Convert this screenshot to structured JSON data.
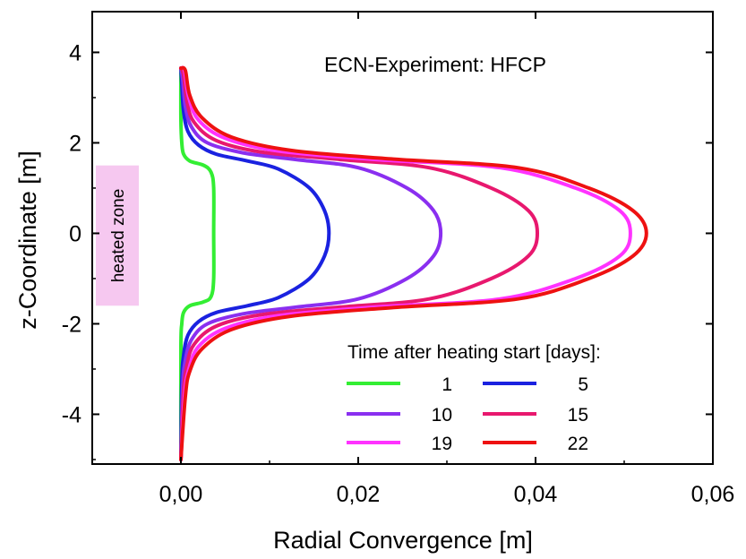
{
  "chart_data": {
    "type": "line",
    "annotation": "ECN-Experiment: HFCP",
    "xlabel": "Radial Convergence  [m]",
    "ylabel": "z-Coordinate [m]",
    "xlim": [
      -0.01,
      0.06
    ],
    "ylim": [
      -5.1,
      4.9
    ],
    "x_ticks": [
      0.0,
      0.02,
      0.04,
      0.06
    ],
    "x_tick_labels": [
      "0,00",
      "0,02",
      "0,04",
      "0,06"
    ],
    "y_ticks": [
      -4,
      -2,
      0,
      2,
      4
    ],
    "y_tick_labels": [
      "-4",
      "-2",
      "0",
      "2",
      "4"
    ],
    "grid": false,
    "heated_zone": {
      "label": "heated zone",
      "z_range": [
        -1.6,
        1.5
      ],
      "color": "#f6c8f0"
    },
    "legend": {
      "title": "Time after heating start [days]:",
      "placement": "bottom-right",
      "columns": 2
    },
    "series": [
      {
        "name": "1",
        "color": "#33ee33",
        "points": [
          [
            0.0,
            -5.0
          ],
          [
            0.0,
            -2.5
          ],
          [
            0.0001,
            -2.0
          ],
          [
            0.0003,
            -1.75
          ],
          [
            0.001,
            -1.6
          ],
          [
            0.0025,
            -1.52
          ],
          [
            0.0034,
            -1.4
          ],
          [
            0.0037,
            -1.0
          ],
          [
            0.0037,
            0.0
          ],
          [
            0.0037,
            1.0
          ],
          [
            0.0034,
            1.35
          ],
          [
            0.0026,
            1.5
          ],
          [
            0.001,
            1.6
          ],
          [
            0.0003,
            1.75
          ],
          [
            0.0001,
            2.0
          ],
          [
            0.0,
            2.5
          ],
          [
            0.0,
            3.65
          ]
        ]
      },
      {
        "name": "5",
        "color": "#1a22e0",
        "points": [
          [
            0.0,
            -5.0
          ],
          [
            0.0001,
            -3.3
          ],
          [
            0.0003,
            -2.7
          ],
          [
            0.0008,
            -2.25
          ],
          [
            0.002,
            -1.95
          ],
          [
            0.004,
            -1.75
          ],
          [
            0.0075,
            -1.6
          ],
          [
            0.011,
            -1.42
          ],
          [
            0.0145,
            -1.0
          ],
          [
            0.0162,
            -0.5
          ],
          [
            0.0167,
            0.0
          ],
          [
            0.0162,
            0.5
          ],
          [
            0.0145,
            1.0
          ],
          [
            0.011,
            1.42
          ],
          [
            0.0075,
            1.6
          ],
          [
            0.004,
            1.75
          ],
          [
            0.002,
            1.95
          ],
          [
            0.0008,
            2.25
          ],
          [
            0.0003,
            2.7
          ],
          [
            0.0001,
            3.3
          ],
          [
            0.0,
            3.65
          ]
        ]
      },
      {
        "name": "10",
        "color": "#8a2ff0",
        "points": [
          [
            0.0,
            -5.0
          ],
          [
            0.0002,
            -3.4
          ],
          [
            0.0005,
            -2.8
          ],
          [
            0.0012,
            -2.35
          ],
          [
            0.003,
            -2.0
          ],
          [
            0.007,
            -1.78
          ],
          [
            0.013,
            -1.63
          ],
          [
            0.02,
            -1.45
          ],
          [
            0.0255,
            -1.0
          ],
          [
            0.0285,
            -0.5
          ],
          [
            0.0293,
            0.0
          ],
          [
            0.0285,
            0.5
          ],
          [
            0.0255,
            1.0
          ],
          [
            0.02,
            1.45
          ],
          [
            0.013,
            1.63
          ],
          [
            0.007,
            1.78
          ],
          [
            0.003,
            2.0
          ],
          [
            0.0012,
            2.35
          ],
          [
            0.0005,
            2.8
          ],
          [
            0.0002,
            3.4
          ],
          [
            0.0,
            3.65
          ]
        ]
      },
      {
        "name": "15",
        "color": "#e8186e",
        "points": [
          [
            0.0,
            -5.0
          ],
          [
            0.0003,
            -3.5
          ],
          [
            0.0007,
            -2.9
          ],
          [
            0.0015,
            -2.45
          ],
          [
            0.004,
            -2.05
          ],
          [
            0.009,
            -1.8
          ],
          [
            0.018,
            -1.63
          ],
          [
            0.028,
            -1.45
          ],
          [
            0.035,
            -1.0
          ],
          [
            0.0392,
            -0.5
          ],
          [
            0.0402,
            0.0
          ],
          [
            0.0392,
            0.5
          ],
          [
            0.035,
            1.0
          ],
          [
            0.028,
            1.45
          ],
          [
            0.018,
            1.63
          ],
          [
            0.009,
            1.8
          ],
          [
            0.004,
            2.05
          ],
          [
            0.0015,
            2.45
          ],
          [
            0.0007,
            2.9
          ],
          [
            0.0003,
            3.5
          ],
          [
            0.0,
            3.65
          ]
        ]
      },
      {
        "name": "19",
        "color": "#ff33ff",
        "points": [
          [
            0.0,
            -5.0
          ],
          [
            0.0004,
            -3.6
          ],
          [
            0.0009,
            -3.0
          ],
          [
            0.002,
            -2.5
          ],
          [
            0.005,
            -2.1
          ],
          [
            0.011,
            -1.82
          ],
          [
            0.022,
            -1.63
          ],
          [
            0.036,
            -1.45
          ],
          [
            0.0445,
            -1.0
          ],
          [
            0.0495,
            -0.5
          ],
          [
            0.0507,
            0.0
          ],
          [
            0.0495,
            0.5
          ],
          [
            0.0445,
            1.0
          ],
          [
            0.036,
            1.45
          ],
          [
            0.022,
            1.63
          ],
          [
            0.011,
            1.82
          ],
          [
            0.005,
            2.1
          ],
          [
            0.002,
            2.5
          ],
          [
            0.0009,
            3.0
          ],
          [
            0.0004,
            3.6
          ],
          [
            0.0,
            3.65
          ]
        ]
      },
      {
        "name": "22",
        "color": "#ee1111",
        "points": [
          [
            0.0,
            -5.0
          ],
          [
            0.0005,
            -3.6
          ],
          [
            0.001,
            -3.05
          ],
          [
            0.0024,
            -2.55
          ],
          [
            0.0058,
            -2.12
          ],
          [
            0.0125,
            -1.83
          ],
          [
            0.024,
            -1.64
          ],
          [
            0.038,
            -1.45
          ],
          [
            0.046,
            -1.0
          ],
          [
            0.051,
            -0.5
          ],
          [
            0.0525,
            0.0
          ],
          [
            0.051,
            0.5
          ],
          [
            0.046,
            1.0
          ],
          [
            0.038,
            1.45
          ],
          [
            0.024,
            1.64
          ],
          [
            0.0125,
            1.83
          ],
          [
            0.0058,
            2.12
          ],
          [
            0.0024,
            2.55
          ],
          [
            0.001,
            3.05
          ],
          [
            0.0005,
            3.6
          ],
          [
            0.0,
            3.65
          ]
        ]
      }
    ]
  }
}
